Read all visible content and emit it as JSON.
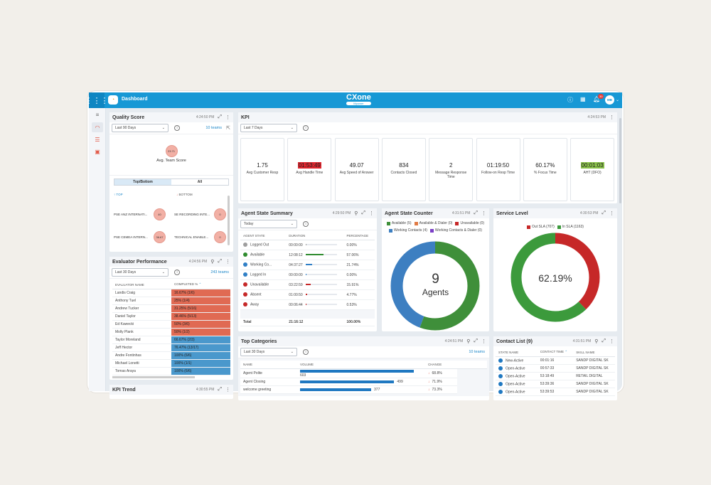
{
  "topbar": {
    "title": "Dashboard",
    "brand": "CXone",
    "brand_sub": "Mpower",
    "notifications": "30",
    "avatar": "MB"
  },
  "quality": {
    "title": "Quality Score",
    "time": "4:24:50 PM",
    "range": "Last 90 Days",
    "teams": "10 teams",
    "avg_score": "23.71",
    "avg_label": "Avg. Team Score",
    "tabs": [
      "Top/Bottom",
      "All"
    ],
    "top_label": "TOP",
    "bottom_label": "BOTTOM",
    "top": [
      {
        "name": "PSE ANZ INTERNATI...",
        "score": "40"
      },
      {
        "name": "PSE CEMEA INTERN...",
        "score": "36.67"
      }
    ],
    "bottom": [
      {
        "name": "SE RECORDING INTE...",
        "score": "0"
      },
      {
        "name": "TECHNICAL ENABLE...",
        "score": "0"
      }
    ]
  },
  "evaluator": {
    "title": "Evaluator Performance",
    "time": "4:24:56 PM",
    "range": "Last 30 Days",
    "teams": "243 teams",
    "columns": [
      "EVALUATOR NAME",
      "COMPLETED %"
    ],
    "rows": [
      [
        "Landis Craig",
        "16.67% (1/6)",
        "low"
      ],
      [
        "Anthony Tuel",
        "25% (1/4)",
        "low"
      ],
      [
        "Andrew Tucker",
        "31.25% (5/16)",
        "low"
      ],
      [
        "Daniel Taylor",
        "38.46% (5/13)",
        "low"
      ],
      [
        "Ed Kawecki",
        "50% (3/6)",
        "low"
      ],
      [
        "Molly Plank",
        "50% (1/2)",
        "low"
      ],
      [
        "Taylor Moreland",
        "66.67% (2/3)",
        "high"
      ],
      [
        "Jeff Hector",
        "76.47% (13/17)",
        "high"
      ],
      [
        "Andre Fontinhas",
        "100% (6/6)",
        "high"
      ],
      [
        "Michael Lonetti",
        "100% (1/1)",
        "high"
      ],
      [
        "Tomas Araya",
        "100% (6/6)",
        "high"
      ]
    ],
    "colors": {
      "low": "#e06a53",
      "high": "#4a98cc"
    }
  },
  "kpi_trend": {
    "title": "KPI Trend",
    "time": "4:30:55 PM"
  },
  "kpi": {
    "title": "KPI",
    "time": "4:24:53 PM",
    "range": "Last 7 Days",
    "cards": [
      {
        "value": "1.75",
        "label": "Avg Customer Resp"
      },
      {
        "value": "01:53:49",
        "label": "Avg Handle Time",
        "highlight": "#e0262e"
      },
      {
        "value": "49.07",
        "label": "Avg Speed of Answer"
      },
      {
        "value": "834",
        "label": "Contacts Closed"
      },
      {
        "value": "2",
        "label": "Message Response Time"
      },
      {
        "value": "01:19:50",
        "label": "Follow-on Resp Time"
      },
      {
        "value": "60.17%",
        "label": "% Focus Time"
      },
      {
        "value": "00:01:03",
        "label": "AHT (DFO)",
        "highlight": "#8bc34a"
      }
    ]
  },
  "agent_summary": {
    "title": "Agent State Summary",
    "time": "4:29:50 PM",
    "range": "Today",
    "columns": [
      "AGENT STATE",
      "DURATION",
      "PERCENTAGE"
    ],
    "rows": [
      {
        "state": "Logged Out",
        "duration": "00:00:00",
        "pct": "0.00%",
        "color": "#9e9e9e",
        "fill": 0
      },
      {
        "state": "Available",
        "duration": "12:08:12",
        "pct": "57.06%",
        "color": "#2e8b2e",
        "fill": 57.06
      },
      {
        "state": "Working Co...",
        "duration": "04:37:27",
        "pct": "21.74%",
        "color": "#2f7fc6",
        "fill": 21.74
      },
      {
        "state": "Logged In",
        "duration": "00:00:00",
        "pct": "0.00%",
        "color": "#2f7fc6",
        "fill": 0
      },
      {
        "state": "Unavailable",
        "duration": "03:22:59",
        "pct": "15.91%",
        "color": "#c62828",
        "fill": 15.91
      },
      {
        "state": "Absent",
        "duration": "01:00:50",
        "pct": "4.77%",
        "color": "#c62828",
        "fill": 4.77
      },
      {
        "state": "Away",
        "duration": "00:06:44",
        "pct": "0.53%",
        "color": "#c62828",
        "fill": 0.53
      }
    ],
    "total": {
      "label": "Total",
      "duration": "21:16:12",
      "pct": "100.00%"
    }
  },
  "agent_counter": {
    "title": "Agent State Counter",
    "time": "4:31:51 PM",
    "count": "9",
    "unit": "Agents",
    "legend": [
      {
        "label": "Available (5)",
        "color": "#3f8f3a",
        "value": 5
      },
      {
        "label": "Available & Dialer (0)",
        "color": "#e07b45",
        "value": 0
      },
      {
        "label": "Unavailable (0)",
        "color": "#c62828",
        "value": 0
      },
      {
        "label": "Working Contacts (4)",
        "color": "#3d7fc1",
        "value": 4
      },
      {
        "label": "Working Contacts & Dialer (0)",
        "color": "#7b3fc6",
        "value": 0
      }
    ]
  },
  "service_level": {
    "title": "Service Level",
    "time": "4:30:53 PM",
    "percent": "62.19%",
    "legend": [
      {
        "label": "Out SLA (707)",
        "color": "#c62828",
        "value": 707
      },
      {
        "label": "In SLA (1163)",
        "color": "#3c9a3c",
        "value": 1163
      }
    ]
  },
  "top_categories": {
    "title": "Top Categories",
    "time": "4:24:51 PM",
    "range": "Last 30 Days",
    "teams": "10 teams",
    "columns": [
      "NAME",
      "VOLUME",
      "CHANGE"
    ],
    "rows": [
      {
        "name": "Agent Polite",
        "volume": 603,
        "change": "68.8%"
      },
      {
        "name": "Agent Closing",
        "volume": 499,
        "change": "71.9%"
      },
      {
        "name": "welcome greeting",
        "volume": 377,
        "change": "73.3%"
      }
    ]
  },
  "contact_list": {
    "title": "Contact List (9)",
    "time": "4:31:51 PM",
    "columns": [
      "STATE NAME",
      "CONTACT TIME",
      "SKILL NAME"
    ],
    "rows": [
      [
        "New-Active",
        "00:01:16",
        "SANDP DIGITAL SK"
      ],
      [
        "Open-Active",
        "00:57:33",
        "SANDP DIGITAL SK"
      ],
      [
        "Open-Active",
        "53:18:49",
        "RETAIL DIGITAL"
      ],
      [
        "Open-Active",
        "53:39:36",
        "SANDP DIGITAL SK"
      ],
      [
        "Open-Active",
        "53:39:53",
        "SANDP DIGITAL SK"
      ]
    ]
  }
}
